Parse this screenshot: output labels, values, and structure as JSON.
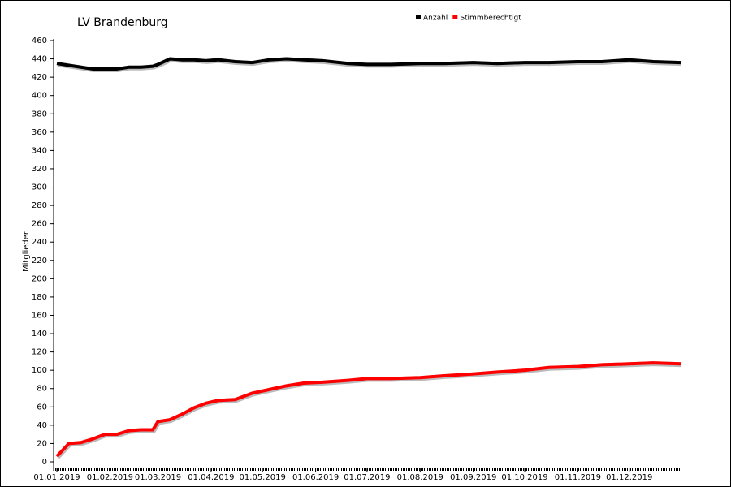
{
  "chart_data": {
    "type": "line",
    "title": "LV Brandenburg",
    "y_label": "Mitglieder",
    "x": [
      "01.01.2019",
      "08.01.2019",
      "15.01.2019",
      "22.01.2019",
      "29.01.2019",
      "05.02.2019",
      "12.02.2019",
      "19.02.2019",
      "26.02.2019",
      "01.03.2019",
      "08.03.2019",
      "15.03.2019",
      "22.03.2019",
      "29.03.2019",
      "05.04.2019",
      "15.04.2019",
      "25.04.2019",
      "05.05.2019",
      "15.05.2019",
      "25.05.2019",
      "05.06.2019",
      "20.06.2019",
      "01.07.2019",
      "15.07.2019",
      "01.08.2019",
      "15.08.2019",
      "01.09.2019",
      "15.09.2019",
      "01.10.2019",
      "15.10.2019",
      "01.11.2019",
      "15.11.2019",
      "01.12.2019",
      "15.12.2019",
      "31.12.2019"
    ],
    "series": [
      {
        "name": "Anzahl",
        "color": "#000000",
        "values": [
          435,
          433,
          431,
          429,
          429,
          429,
          431,
          431,
          432,
          434,
          440,
          439,
          439,
          438,
          439,
          437,
          436,
          439,
          440,
          439,
          438,
          435,
          434,
          434,
          435,
          435,
          436,
          435,
          436,
          436,
          437,
          437,
          439,
          437,
          436
        ]
      },
      {
        "name": "Stimmberechtigt",
        "color": "#ff0000",
        "values": [
          6,
          20,
          21,
          25,
          30,
          30,
          34,
          35,
          35,
          44,
          46,
          52,
          59,
          64,
          67,
          68,
          75,
          79,
          83,
          86,
          87,
          89,
          91,
          91,
          92,
          94,
          96,
          98,
          100,
          103,
          104,
          106,
          107,
          108,
          107
        ]
      }
    ],
    "xlim": [
      "01.01.2019",
      "31.12.2019"
    ],
    "xticks": [
      "01.01.2019",
      "01.02.2019",
      "01.03.2019",
      "01.04.2019",
      "01.05.2019",
      "01.06.2019",
      "01.07.2019",
      "01.08.2019",
      "01.09.2019",
      "01.10.2019",
      "01.11.2019",
      "01.12.2019"
    ],
    "ylim": [
      0,
      460
    ],
    "yticks": [
      0,
      20,
      40,
      60,
      80,
      100,
      120,
      140,
      160,
      180,
      200,
      220,
      240,
      260,
      280,
      300,
      320,
      340,
      360,
      380,
      400,
      420,
      440,
      460
    ],
    "legend": "top"
  }
}
